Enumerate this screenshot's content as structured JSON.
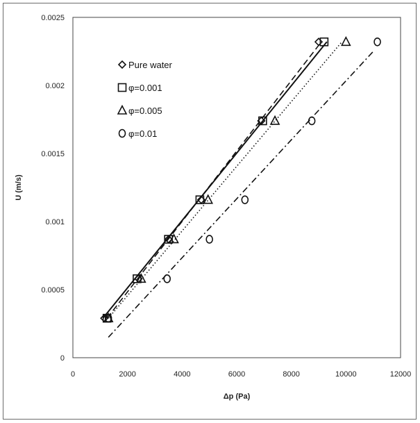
{
  "chart_data": {
    "type": "scatter",
    "title": "",
    "xlabel": "Δp (Pa)",
    "ylabel": "U (m/s)",
    "xlim": [
      0,
      12000
    ],
    "ylim": [
      0,
      0.0025
    ],
    "x_ticks": [
      0,
      2000,
      4000,
      6000,
      8000,
      10000,
      12000
    ],
    "y_ticks": [
      0,
      0.0005,
      0.001,
      0.0015,
      0.002,
      0.0025
    ],
    "x_tick_labels": [
      "0",
      "2000",
      "4000",
      "6000",
      "8000",
      "10000",
      "12000"
    ],
    "y_tick_labels": [
      "0",
      "0.0005",
      "0.001",
      "0.0015",
      "0.002",
      "0.0025"
    ],
    "grid": false,
    "legend_position": "top-left",
    "series": [
      {
        "name": "Pure water",
        "marker": "diamond",
        "line_style": "solid",
        "x": [
          1150,
          2400,
          3500,
          4700,
          6900,
          9000
        ],
        "y": [
          0.00029,
          0.00058,
          0.00087,
          0.00116,
          0.00174,
          0.00232
        ]
      },
      {
        "name": "φ=0.001",
        "marker": "square",
        "line_style": "dashed",
        "x": [
          1250,
          2350,
          3500,
          4650,
          6950,
          9200
        ],
        "y": [
          0.00029,
          0.00058,
          0.00087,
          0.00116,
          0.00174,
          0.00232
        ]
      },
      {
        "name": "φ=0.005",
        "marker": "triangle",
        "line_style": "dotted",
        "x": [
          1300,
          2500,
          3700,
          4950,
          7400,
          10000
        ],
        "y": [
          0.00029,
          0.00058,
          0.00087,
          0.00116,
          0.00174,
          0.00232
        ]
      },
      {
        "name": "φ=0.01",
        "marker": "circle",
        "line_style": "dashdot",
        "x": [
          1300,
          3450,
          5000,
          6300,
          8750,
          11150
        ],
        "y": [
          0.00029,
          0.00058,
          0.00087,
          0.00116,
          0.00174,
          0.00232
        ]
      }
    ],
    "trendlines": [
      {
        "series": "Pure water",
        "x": [
          1100,
          9300
        ],
        "y": [
          0.00029,
          0.00232
        ]
      },
      {
        "series": "φ=0.001",
        "x": [
          1250,
          9100
        ],
        "y": [
          0.00029,
          0.00232
        ]
      },
      {
        "series": "φ=0.005",
        "x": [
          1300,
          9850
        ],
        "y": [
          0.00029,
          0.00232
        ]
      },
      {
        "series": "φ=0.01",
        "x": [
          1300,
          11000
        ],
        "y": [
          0.00015,
          0.00225
        ]
      }
    ]
  }
}
